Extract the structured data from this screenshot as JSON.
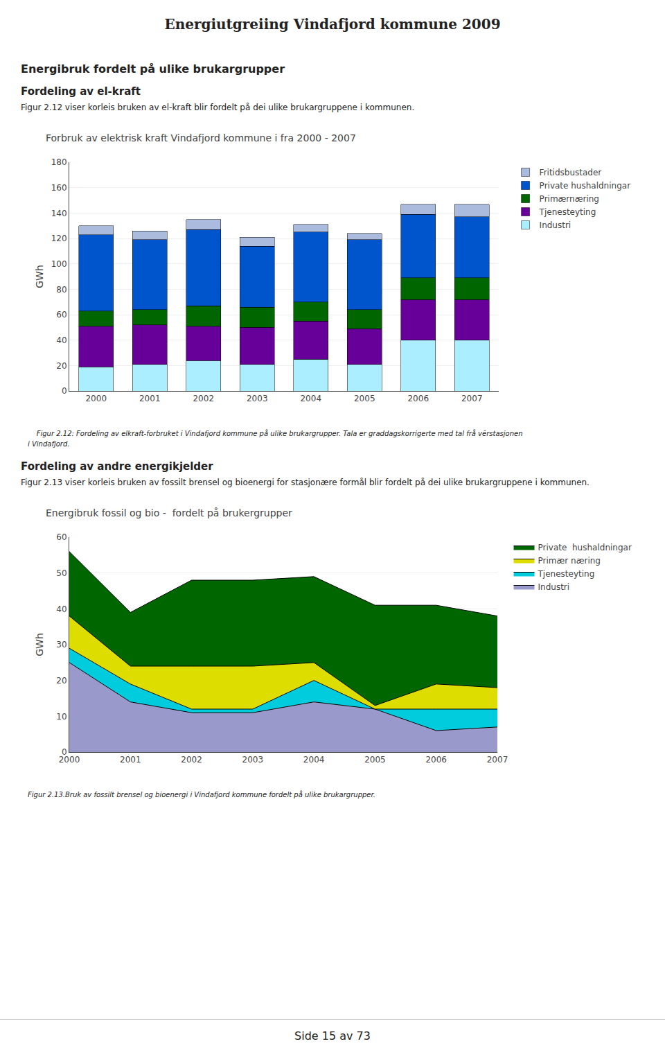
{
  "chart_data": [
    {
      "type": "bar",
      "title": "Forbruk av elektrisk kraft Vindafjord kommune i fra 2000 - 2007",
      "y_label": "GWh",
      "categories": [
        "2000",
        "2001",
        "2002",
        "2003",
        "2004",
        "2005",
        "2006",
        "2007"
      ],
      "series": [
        {
          "name": "Industri",
          "color": "#aaeeff",
          "values": [
            19,
            21,
            24,
            21,
            25,
            21,
            40,
            40
          ]
        },
        {
          "name": "Tjenesteyting",
          "color": "#660099",
          "values": [
            32,
            31,
            27,
            29,
            30,
            28,
            32,
            32
          ]
        },
        {
          "name": "Primærnæring",
          "color": "#006600",
          "values": [
            12,
            12,
            16,
            16,
            15,
            15,
            17,
            17
          ]
        },
        {
          "name": "Private hushaldningar",
          "color": "#0055cc",
          "values": [
            60,
            55,
            60,
            48,
            55,
            55,
            50,
            48
          ]
        },
        {
          "name": "Fritidsbustader",
          "color": "#aabbdd",
          "values": [
            7,
            7,
            8,
            7,
            6,
            5,
            8,
            10
          ]
        }
      ],
      "stacked": true,
      "ylim": [
        0,
        180
      ],
      "yticks": [
        0,
        20,
        40,
        60,
        80,
        100,
        120,
        140,
        160,
        180
      ],
      "grid": true,
      "legend": "right",
      "annotations": [
        "Energiutgreiing Vindafjord kommune 2009",
        "Energibruk fordelt på ulike brukargrupper",
        "Fordeling av el-kraft",
        "Figur 2.12 viser korleis bruken av el-kraft blir fordelt på dei ulike brukargruppene i kommunen.",
        "    Figur 2.12: Fordeling av elkraft-forbruket i Vindafjord kommune på ulike brukargrupper. Tala er graddagskorrigerte med tal frå vêrstasjonen",
        "i Vindafjord."
      ]
    },
    {
      "type": "area",
      "title": "Energibruk fossil og bio -  fordelt på brukergrupper",
      "y_label": "GWh",
      "x": [
        2000,
        2001,
        2002,
        2003,
        2004,
        2005,
        2006,
        2007
      ],
      "series": [
        {
          "name": "Industri",
          "color": "#9999cc",
          "values": [
            25,
            14,
            11,
            11,
            14,
            12,
            6,
            7
          ]
        },
        {
          "name": "Tjenesteyting",
          "color": "#00ccdd",
          "values": [
            4,
            5,
            1,
            1,
            6,
            0,
            6,
            5
          ]
        },
        {
          "name": "Primær næring",
          "color": "#dddd00",
          "values": [
            9,
            5,
            12,
            12,
            5,
            1,
            7,
            6
          ]
        },
        {
          "name": "Private  hushaldningar",
          "color": "#006600",
          "values": [
            18,
            15,
            24,
            24,
            24,
            28,
            22,
            20
          ]
        }
      ],
      "stacked": true,
      "xlim": [
        2000,
        2007
      ],
      "xticks": [
        2000,
        2001,
        2002,
        2003,
        2004,
        2005,
        2006,
        2007
      ],
      "ylim": [
        0,
        60
      ],
      "yticks": [
        0,
        10,
        20,
        30,
        40,
        50,
        60
      ],
      "grid": true,
      "legend": "right",
      "annotations": [
        "Fordeling av andre energikjelder",
        "Figur 2.13 viser korleis bruken av fossilt brensel og bioenergi for stasjonære formål blir fordelt på dei ulike brukargruppene i kommunen.",
        "Figur 2.13.Bruk av fossilt brensel og bioenergi i Vindafjord kommune fordelt på ulike brukargrupper.",
        "Side 15 av 73"
      ]
    }
  ]
}
